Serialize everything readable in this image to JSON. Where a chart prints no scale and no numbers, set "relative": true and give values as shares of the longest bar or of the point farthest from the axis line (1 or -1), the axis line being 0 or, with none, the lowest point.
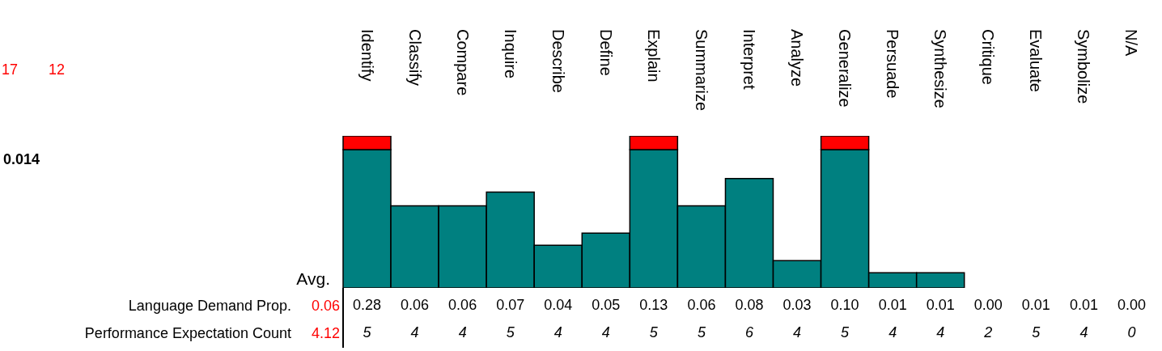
{
  "chart_data": {
    "type": "bar",
    "relative": true,
    "stacked": true,
    "categories": [
      "Identify",
      "Classify",
      "Compare",
      "Inquire",
      "Describe",
      "Define",
      "Explain",
      "Summarize",
      "Interpret",
      "Analyze",
      "Generalize",
      "Persuade",
      "Synthesize",
      "Critique",
      "Evaluate",
      "Symbolize",
      "N/A"
    ],
    "series": [
      {
        "color": "#008080",
        "values": [
          0.91,
          0.54,
          0.54,
          0.63,
          0.28,
          0.36,
          0.91,
          0.54,
          0.72,
          0.18,
          0.91,
          0.1,
          0.1,
          0,
          0,
          0,
          0
        ]
      },
      {
        "color": "#ff0000",
        "values": [
          0.09,
          null,
          null,
          null,
          null,
          null,
          0.09,
          null,
          null,
          null,
          0.09,
          null,
          null,
          null,
          null,
          null,
          null
        ]
      }
    ],
    "annotations": [
      "17",
      "12",
      "0.014",
      "Avg.",
      "Language Demand Prop.",
      "0.06",
      "Performance Expectation Count",
      "4.12",
      "0.28",
      "0.06",
      "0.06",
      "0.07",
      "0.04",
      "0.05",
      "0.13",
      "0.06",
      "0.08",
      "0.03",
      "0.10",
      "0.01",
      "0.01",
      "0.00",
      "0.01",
      "0.01",
      "0.00",
      "5",
      "4",
      "4",
      "5",
      "4",
      "4",
      "5",
      "5",
      "6",
      "4",
      "5",
      "4",
      "4",
      "2",
      "5",
      "4",
      "0"
    ]
  }
}
